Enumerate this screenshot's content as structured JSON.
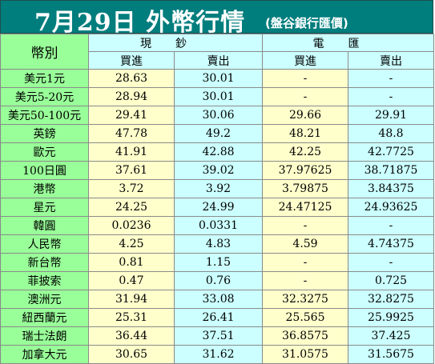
{
  "title": "7月29日 外幣行情",
  "subtitle": "(盤谷銀行匯價)",
  "header": {
    "currency_label": "幣別",
    "cash_label": "現鈔",
    "wire_label": "電匯",
    "buy_label": "買進",
    "sell_label": "賣出"
  },
  "rows": [
    {
      "name": "美元1元",
      "cash_buy": "28.63",
      "cash_sell": "30.01",
      "wire_buy": "-",
      "wire_sell": "-"
    },
    {
      "name": "美元5-20元",
      "cash_buy": "28.94",
      "cash_sell": "30.01",
      "wire_buy": "-",
      "wire_sell": "-"
    },
    {
      "name": "美元50-100元",
      "cash_buy": "29.41",
      "cash_sell": "30.06",
      "wire_buy": "29.66",
      "wire_sell": "29.91"
    },
    {
      "name": "英鎊",
      "cash_buy": "47.78",
      "cash_sell": "49.2",
      "wire_buy": "48.21",
      "wire_sell": "48.8"
    },
    {
      "name": "歐元",
      "cash_buy": "41.91",
      "cash_sell": "42.88",
      "wire_buy": "42.25",
      "wire_sell": "42.7725"
    },
    {
      "name": "100日圓",
      "cash_buy": "37.61",
      "cash_sell": "39.02",
      "wire_buy": "37.97625",
      "wire_sell": "38.71875"
    },
    {
      "name": "港幣",
      "cash_buy": "3.72",
      "cash_sell": "3.92",
      "wire_buy": "3.79875",
      "wire_sell": "3.84375"
    },
    {
      "name": "星元",
      "cash_buy": "24.25",
      "cash_sell": "24.99",
      "wire_buy": "24.47125",
      "wire_sell": "24.93625"
    },
    {
      "name": "韓圓",
      "cash_buy": "0.0236",
      "cash_sell": "0.0331",
      "wire_buy": "-",
      "wire_sell": "-"
    },
    {
      "name": "人民幣",
      "cash_buy": "4.25",
      "cash_sell": "4.83",
      "wire_buy": "4.59",
      "wire_sell": "4.74375"
    },
    {
      "name": "新台幣",
      "cash_buy": "0.81",
      "cash_sell": "1.15",
      "wire_buy": "-",
      "wire_sell": "-"
    },
    {
      "name": "菲披索",
      "cash_buy": "0.47",
      "cash_sell": "0.76",
      "wire_buy": "-",
      "wire_sell": "0.725"
    },
    {
      "name": "澳洲元",
      "cash_buy": "31.94",
      "cash_sell": "33.08",
      "wire_buy": "32.3275",
      "wire_sell": "32.8275"
    },
    {
      "name": "紐西蘭元",
      "cash_buy": "25.31",
      "cash_sell": "26.41",
      "wire_buy": "25.565",
      "wire_sell": "25.9925"
    },
    {
      "name": "瑞士法朗",
      "cash_buy": "36.44",
      "cash_sell": "37.51",
      "wire_buy": "36.8575",
      "wire_sell": "37.425"
    },
    {
      "name": "加拿大元",
      "cash_buy": "30.65",
      "cash_sell": "31.62",
      "wire_buy": "31.0575",
      "wire_sell": "31.5675"
    }
  ]
}
